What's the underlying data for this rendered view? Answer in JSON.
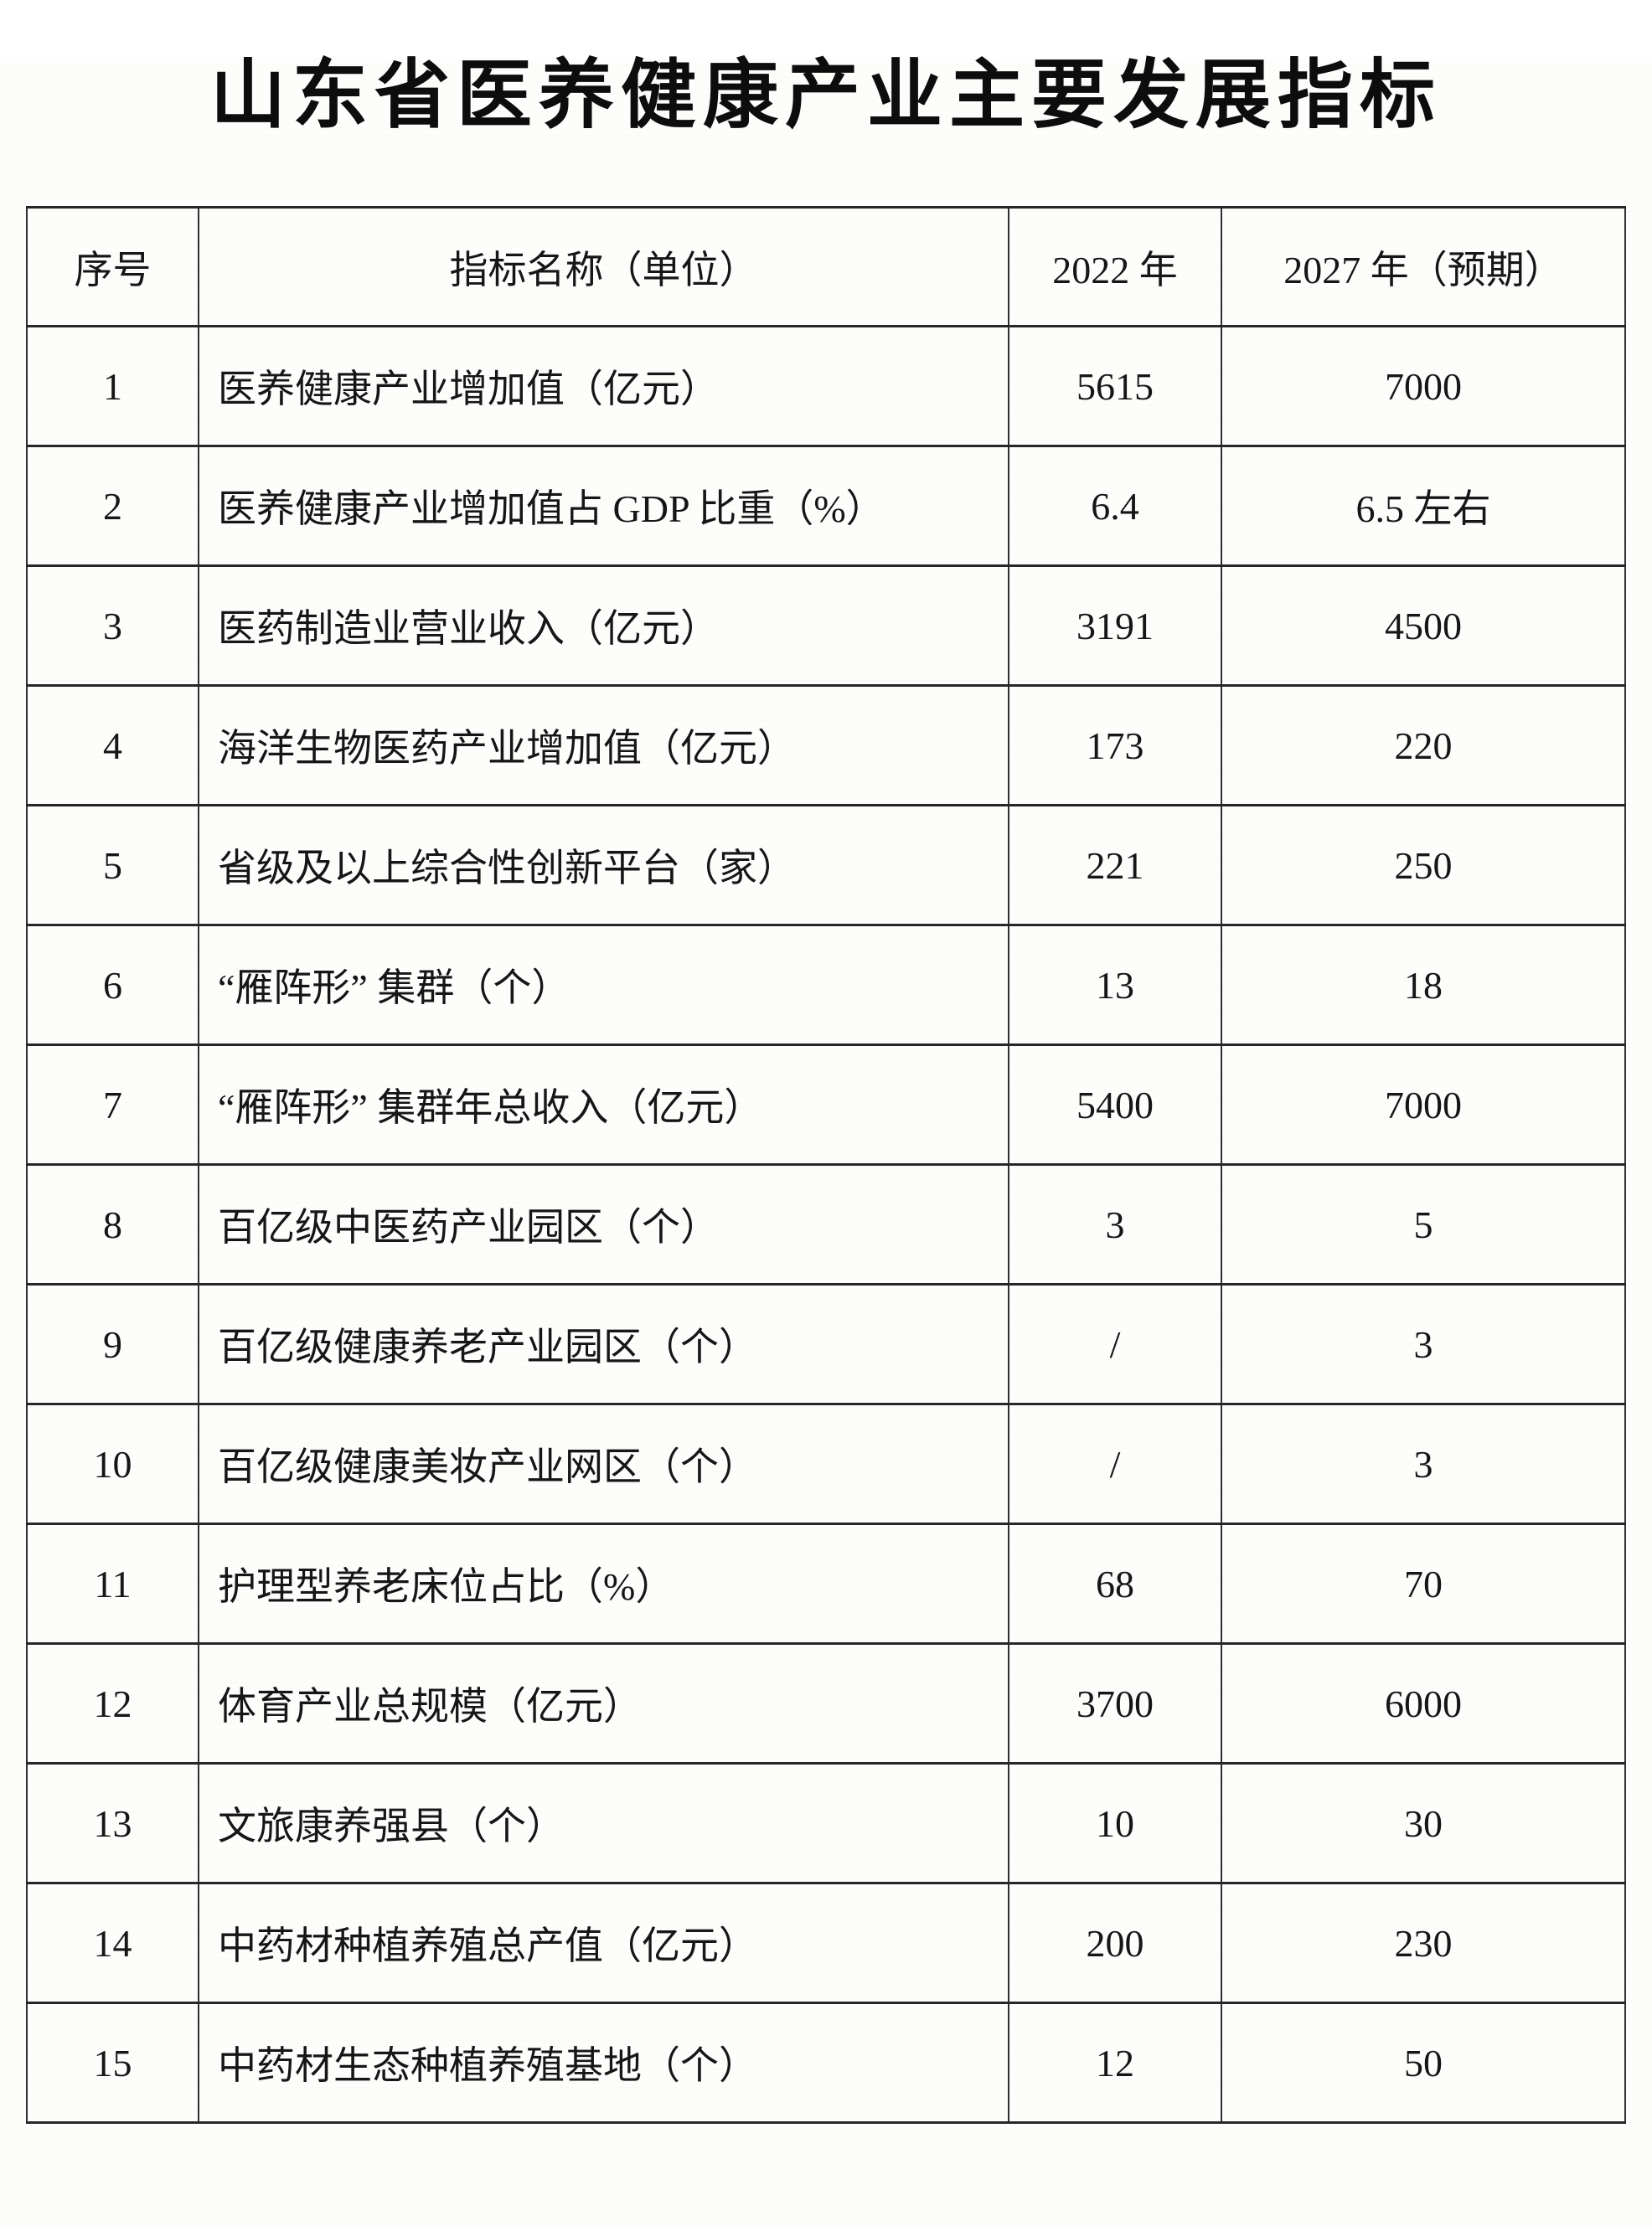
{
  "title": "山东省医养健康产业主要发展指标",
  "table": {
    "headers": {
      "no": "序号",
      "name": "指标名称（单位）",
      "y2022": "2022 年",
      "y2027": "2027 年（预期）"
    },
    "rows": [
      {
        "no": "1",
        "name": "医养健康产业增加值（亿元）",
        "y2022": "5615",
        "y2027": "7000"
      },
      {
        "no": "2",
        "name": "医养健康产业增加值占 GDP 比重（%）",
        "y2022": "6.4",
        "y2027": "6.5 左右"
      },
      {
        "no": "3",
        "name": "医药制造业营业收入（亿元）",
        "y2022": "3191",
        "y2027": "4500"
      },
      {
        "no": "4",
        "name": "海洋生物医药产业增加值（亿元）",
        "y2022": "173",
        "y2027": "220"
      },
      {
        "no": "5",
        "name": "省级及以上综合性创新平台（家）",
        "y2022": "221",
        "y2027": "250"
      },
      {
        "no": "6",
        "name": "“雁阵形” 集群（个）",
        "y2022": "13",
        "y2027": "18"
      },
      {
        "no": "7",
        "name": "“雁阵形” 集群年总收入（亿元）",
        "y2022": "5400",
        "y2027": "7000"
      },
      {
        "no": "8",
        "name": "百亿级中医药产业园区（个）",
        "y2022": "3",
        "y2027": "5"
      },
      {
        "no": "9",
        "name": "百亿级健康养老产业园区（个）",
        "y2022": "/",
        "y2027": "3"
      },
      {
        "no": "10",
        "name": "百亿级健康美妆产业网区（个）",
        "y2022": "/",
        "y2027": "3"
      },
      {
        "no": "11",
        "name": "护理型养老床位占比（%）",
        "y2022": "68",
        "y2027": "70"
      },
      {
        "no": "12",
        "name": "体育产业总规模（亿元）",
        "y2022": "3700",
        "y2027": "6000"
      },
      {
        "no": "13",
        "name": "文旅康养强县（个）",
        "y2022": "10",
        "y2027": "30"
      },
      {
        "no": "14",
        "name": "中药材种植养殖总产值（亿元）",
        "y2022": "200",
        "y2027": "230"
      },
      {
        "no": "15",
        "name": "中药材生态种植养殖基地（个）",
        "y2022": "12",
        "y2027": "50"
      }
    ]
  }
}
